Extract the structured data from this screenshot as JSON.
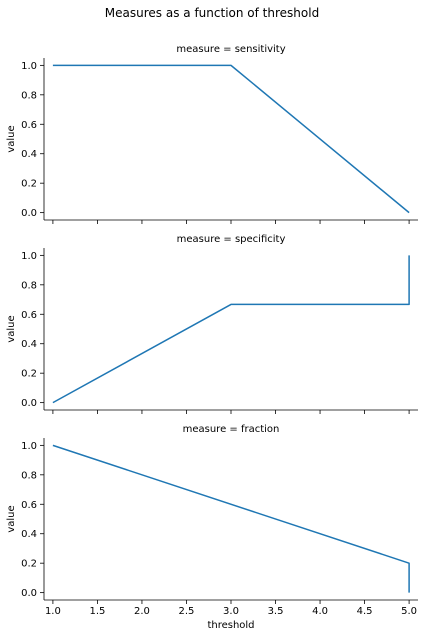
{
  "figure": {
    "title": "Measures as a function of threshold"
  },
  "chart_data": [
    {
      "type": "line",
      "title": "measure = sensitivity",
      "xlabel": "",
      "ylabel": "value",
      "xlim": [
        0.9,
        5.1
      ],
      "ylim": [
        -0.05,
        1.05
      ],
      "xticks": [
        1.0,
        1.5,
        2.0,
        2.5,
        3.0,
        3.5,
        4.0,
        4.5,
        5.0
      ],
      "xtick_labels_visible": false,
      "yticks": [
        0.0,
        0.2,
        0.4,
        0.6,
        0.8,
        1.0
      ],
      "ytick_labels": [
        "0.0",
        "0.2",
        "0.4",
        "0.6",
        "0.8",
        "1.0"
      ],
      "color": "#1f77b4",
      "series": [
        {
          "x": [
            1,
            3,
            5
          ],
          "y": [
            1.0,
            1.0,
            0.0
          ]
        }
      ]
    },
    {
      "type": "line",
      "title": "measure = specificity",
      "xlabel": "",
      "ylabel": "value",
      "xlim": [
        0.9,
        5.1
      ],
      "ylim": [
        -0.05,
        1.05
      ],
      "xticks": [
        1.0,
        1.5,
        2.0,
        2.5,
        3.0,
        3.5,
        4.0,
        4.5,
        5.0
      ],
      "xtick_labels_visible": false,
      "yticks": [
        0.0,
        0.2,
        0.4,
        0.6,
        0.8,
        1.0
      ],
      "ytick_labels": [
        "0.0",
        "0.2",
        "0.4",
        "0.6",
        "0.8",
        "1.0"
      ],
      "color": "#1f77b4",
      "series": [
        {
          "x": [
            1,
            3,
            5,
            5
          ],
          "y": [
            0.0,
            0.667,
            0.667,
            1.0
          ]
        }
      ]
    },
    {
      "type": "line",
      "title": "measure = fraction",
      "xlabel": "threshold",
      "ylabel": "value",
      "xlim": [
        0.9,
        5.1
      ],
      "ylim": [
        -0.05,
        1.05
      ],
      "xticks": [
        1.0,
        1.5,
        2.0,
        2.5,
        3.0,
        3.5,
        4.0,
        4.5,
        5.0
      ],
      "xtick_labels": [
        "1.0",
        "1.5",
        "2.0",
        "2.5",
        "3.0",
        "3.5",
        "4.0",
        "4.5",
        "5.0"
      ],
      "xtick_labels_visible": true,
      "yticks": [
        0.0,
        0.2,
        0.4,
        0.6,
        0.8,
        1.0
      ],
      "ytick_labels": [
        "0.0",
        "0.2",
        "0.4",
        "0.6",
        "0.8",
        "1.0"
      ],
      "color": "#1f77b4",
      "series": [
        {
          "x": [
            1,
            5,
            5
          ],
          "y": [
            1.0,
            0.2,
            0.0
          ]
        }
      ]
    }
  ]
}
